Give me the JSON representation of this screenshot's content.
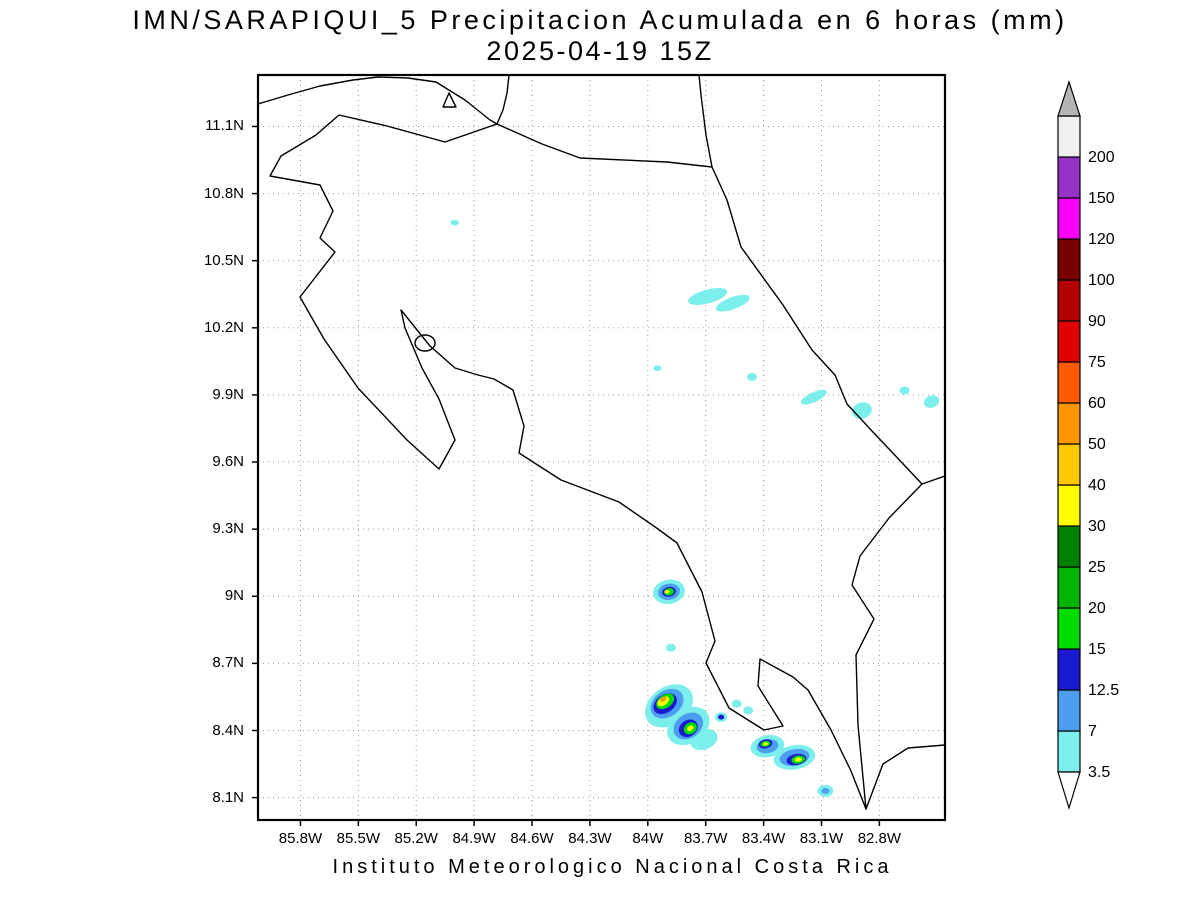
{
  "header": {
    "title_line1": "IMN/SARAPIQUI_5 Precipitacion Acumulada en 6 horas (mm)",
    "title_line2": "2025-04-19 15Z"
  },
  "footer": {
    "caption": "Instituto Meteorologico Nacional Costa Rica"
  },
  "chart_data": {
    "type": "map_contour",
    "title": "IMN/SARAPIQUI_5 Precipitacion Acumulada en 6 horas (mm)",
    "subtitle": "2025-04-19 15Z",
    "region": "Costa Rica",
    "units": "mm",
    "grid": "dotted",
    "x_axis": {
      "range": [
        86.02,
        82.46
      ],
      "direction": "degrees_west_decreasing_right",
      "ticks": [
        {
          "v": 85.8,
          "label": "85.8W"
        },
        {
          "v": 85.5,
          "label": "85.5W"
        },
        {
          "v": 85.2,
          "label": "85.2W"
        },
        {
          "v": 84.9,
          "label": "84.9W"
        },
        {
          "v": 84.6,
          "label": "84.6W"
        },
        {
          "v": 84.3,
          "label": "84.3W"
        },
        {
          "v": 84.0,
          "label": "84W"
        },
        {
          "v": 83.7,
          "label": "83.7W"
        },
        {
          "v": 83.4,
          "label": "83.4W"
        },
        {
          "v": 83.1,
          "label": "83.1W"
        },
        {
          "v": 82.8,
          "label": "82.8W"
        }
      ]
    },
    "y_axis": {
      "range": [
        8.0,
        11.33
      ],
      "ticks": [
        {
          "v": 11.1,
          "label": "11.1N"
        },
        {
          "v": 10.8,
          "label": "10.8N"
        },
        {
          "v": 10.5,
          "label": "10.5N"
        },
        {
          "v": 10.2,
          "label": "10.2N"
        },
        {
          "v": 9.9,
          "label": "9.9N"
        },
        {
          "v": 9.6,
          "label": "9.6N"
        },
        {
          "v": 9.3,
          "label": "9.3N"
        },
        {
          "v": 9.0,
          "label": "9N"
        },
        {
          "v": 8.7,
          "label": "8.7N"
        },
        {
          "v": 8.4,
          "label": "8.4N"
        },
        {
          "v": 8.1,
          "label": "8.1N"
        }
      ]
    },
    "colorbar": {
      "levels": [
        3.5,
        7,
        12.5,
        15,
        20,
        25,
        30,
        40,
        50,
        60,
        75,
        90,
        100,
        120,
        150,
        200
      ],
      "labels": [
        "3.5",
        "7",
        "12.5",
        "15",
        "20",
        "25",
        "30",
        "40",
        "50",
        "60",
        "75",
        "90",
        "100",
        "120",
        "150",
        "200"
      ],
      "band_colors_ascending": [
        "#7CEFEC",
        "#4D9EF0",
        "#1A1AD2",
        "#00DC00",
        "#00B400",
        "#008000",
        "#FFFF00",
        "#FFC800",
        "#FF9600",
        "#FF5A00",
        "#E10000",
        "#B40000",
        "#780000",
        "#FA00FA",
        "#9632C8",
        "#F0F0F0"
      ],
      "under_color": "#FFFFFF",
      "top_arrow_color": "#B4B4B4"
    },
    "precip_cells": [
      {
        "lon": 83.69,
        "lat": 10.34,
        "rw": 0.104,
        "rh": 0.031,
        "rot": -15,
        "level": 3.5
      },
      {
        "lon": 83.56,
        "lat": 10.31,
        "rw": 0.093,
        "rh": 0.027,
        "rot": -20,
        "level": 3.5
      },
      {
        "lon": 85.0,
        "lat": 10.67,
        "rw": 0.021,
        "rh": 0.013,
        "rot": 0,
        "level": 3.5
      },
      {
        "lon": 83.95,
        "lat": 10.02,
        "rw": 0.021,
        "rh": 0.013,
        "rot": 0,
        "level": 3.5
      },
      {
        "lon": 83.46,
        "lat": 9.98,
        "rw": 0.026,
        "rh": 0.018,
        "rot": 0,
        "level": 3.5
      },
      {
        "lon": 83.14,
        "lat": 9.89,
        "rw": 0.073,
        "rh": 0.022,
        "rot": -25,
        "level": 3.5
      },
      {
        "lon": 82.89,
        "lat": 9.83,
        "rw": 0.052,
        "rh": 0.036,
        "rot": -20,
        "level": 3.5
      },
      {
        "lon": 82.67,
        "lat": 9.92,
        "rw": 0.026,
        "rh": 0.018,
        "rot": 0,
        "level": 3.5
      },
      {
        "lon": 82.53,
        "lat": 9.87,
        "rw": 0.041,
        "rh": 0.027,
        "rot": -20,
        "level": 3.5
      },
      {
        "lon": 83.89,
        "lat": 9.02,
        "rw": 0.083,
        "rh": 0.054,
        "rot": -10,
        "level": 3.5
      },
      {
        "lon": 83.89,
        "lat": 9.02,
        "rw": 0.057,
        "rh": 0.036,
        "rot": -10,
        "level": 7
      },
      {
        "lon": 83.89,
        "lat": 9.02,
        "rw": 0.036,
        "rh": 0.022,
        "rot": -10,
        "level": 12.5
      },
      {
        "lon": 83.89,
        "lat": 9.02,
        "rw": 0.026,
        "rh": 0.016,
        "rot": -10,
        "level": 15
      },
      {
        "lon": 83.9,
        "lat": 9.02,
        "rw": 0.013,
        "rh": 0.008,
        "rot": -10,
        "level": 30
      },
      {
        "lon": 83.88,
        "lat": 8.77,
        "rw": 0.026,
        "rh": 0.018,
        "rot": 0,
        "level": 3.5
      },
      {
        "lon": 83.89,
        "lat": 8.51,
        "rw": 0.135,
        "rh": 0.085,
        "rot": -35,
        "level": 3.5
      },
      {
        "lon": 83.79,
        "lat": 8.42,
        "rw": 0.119,
        "rh": 0.076,
        "rot": -35,
        "level": 3.5
      },
      {
        "lon": 83.71,
        "lat": 8.36,
        "rw": 0.073,
        "rh": 0.045,
        "rot": -20,
        "level": 3.5
      },
      {
        "lon": 83.9,
        "lat": 8.52,
        "rw": 0.093,
        "rh": 0.058,
        "rot": -35,
        "level": 7
      },
      {
        "lon": 83.79,
        "lat": 8.42,
        "rw": 0.083,
        "rh": 0.054,
        "rot": -35,
        "level": 7
      },
      {
        "lon": 83.91,
        "lat": 8.52,
        "rw": 0.067,
        "rh": 0.04,
        "rot": -35,
        "level": 12.5
      },
      {
        "lon": 83.79,
        "lat": 8.41,
        "rw": 0.052,
        "rh": 0.036,
        "rot": -35,
        "level": 12.5
      },
      {
        "lon": 83.91,
        "lat": 8.53,
        "rw": 0.052,
        "rh": 0.029,
        "rot": -35,
        "level": 15
      },
      {
        "lon": 83.78,
        "lat": 8.41,
        "rw": 0.036,
        "rh": 0.025,
        "rot": -35,
        "level": 15
      },
      {
        "lon": 83.92,
        "lat": 8.53,
        "rw": 0.034,
        "rh": 0.018,
        "rot": -35,
        "level": 30
      },
      {
        "lon": 83.78,
        "lat": 8.41,
        "rw": 0.018,
        "rh": 0.011,
        "rot": -35,
        "level": 30
      },
      {
        "lon": 83.92,
        "lat": 8.54,
        "rw": 0.018,
        "rh": 0.01,
        "rot": -35,
        "level": 50
      },
      {
        "lon": 83.62,
        "lat": 8.46,
        "rw": 0.031,
        "rh": 0.022,
        "rot": 0,
        "level": 3.5
      },
      {
        "lon": 83.62,
        "lat": 8.46,
        "rw": 0.016,
        "rh": 0.011,
        "rot": 0,
        "level": 12.5
      },
      {
        "lon": 83.54,
        "lat": 8.52,
        "rw": 0.026,
        "rh": 0.018,
        "rot": 0,
        "level": 3.5
      },
      {
        "lon": 83.48,
        "lat": 8.49,
        "rw": 0.026,
        "rh": 0.018,
        "rot": 0,
        "level": 3.5
      },
      {
        "lon": 83.38,
        "lat": 8.33,
        "rw": 0.088,
        "rh": 0.049,
        "rot": -10,
        "level": 3.5
      },
      {
        "lon": 83.24,
        "lat": 8.28,
        "rw": 0.109,
        "rh": 0.054,
        "rot": -10,
        "level": 3.5
      },
      {
        "lon": 83.38,
        "lat": 8.33,
        "rw": 0.057,
        "rh": 0.031,
        "rot": -10,
        "level": 7
      },
      {
        "lon": 83.24,
        "lat": 8.28,
        "rw": 0.078,
        "rh": 0.036,
        "rot": -10,
        "level": 7
      },
      {
        "lon": 83.39,
        "lat": 8.34,
        "rw": 0.036,
        "rh": 0.02,
        "rot": -10,
        "level": 12.5
      },
      {
        "lon": 83.23,
        "lat": 8.27,
        "rw": 0.052,
        "rh": 0.025,
        "rot": -10,
        "level": 12.5
      },
      {
        "lon": 83.39,
        "lat": 8.34,
        "rw": 0.026,
        "rh": 0.013,
        "rot": -10,
        "level": 15
      },
      {
        "lon": 83.22,
        "lat": 8.27,
        "rw": 0.036,
        "rh": 0.018,
        "rot": -10,
        "level": 15
      },
      {
        "lon": 83.39,
        "lat": 8.34,
        "rw": 0.013,
        "rh": 0.007,
        "rot": -10,
        "level": 30
      },
      {
        "lon": 83.22,
        "lat": 8.27,
        "rw": 0.018,
        "rh": 0.01,
        "rot": -10,
        "level": 30
      },
      {
        "lon": 83.08,
        "lat": 8.13,
        "rw": 0.041,
        "rh": 0.027,
        "rot": 0,
        "level": 3.5
      },
      {
        "lon": 83.08,
        "lat": 8.13,
        "rw": 0.021,
        "rh": 0.013,
        "rot": 0,
        "level": 7
      }
    ]
  }
}
